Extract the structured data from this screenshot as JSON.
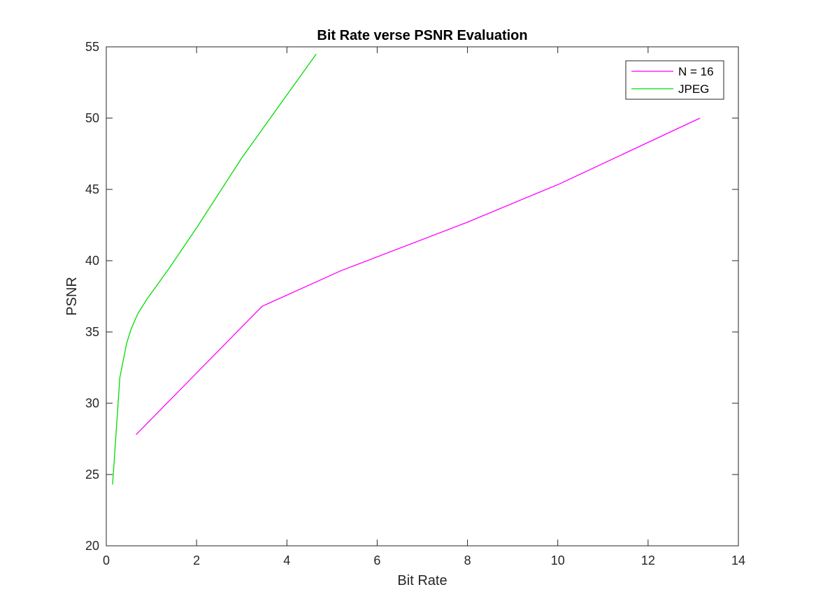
{
  "chart_data": {
    "type": "line",
    "title": "Bit Rate verse PSNR Evaluation",
    "xlabel": "Bit Rate",
    "ylabel": "PSNR",
    "xlim": [
      0,
      14
    ],
    "ylim": [
      20,
      55
    ],
    "xticks": [
      0,
      2,
      4,
      6,
      8,
      10,
      12,
      14
    ],
    "yticks": [
      20,
      25,
      30,
      35,
      40,
      45,
      50,
      55
    ],
    "grid": false,
    "legend_position": "top-right",
    "series": [
      {
        "name": "N = 16",
        "color": "#ff00ff",
        "x": [
          0.66,
          3.45,
          5.2,
          8.0,
          10.05,
          13.15
        ],
        "y": [
          27.8,
          36.8,
          39.3,
          42.7,
          45.4,
          50.0
        ]
      },
      {
        "name": "JPEG",
        "color": "#00dd00",
        "x": [
          0.14,
          0.3,
          0.45,
          0.55,
          0.7,
          0.9,
          1.4,
          2.0,
          3.0,
          4.65
        ],
        "y": [
          24.3,
          31.8,
          34.2,
          35.2,
          36.3,
          37.3,
          39.5,
          42.3,
          47.2,
          54.5
        ]
      }
    ]
  }
}
